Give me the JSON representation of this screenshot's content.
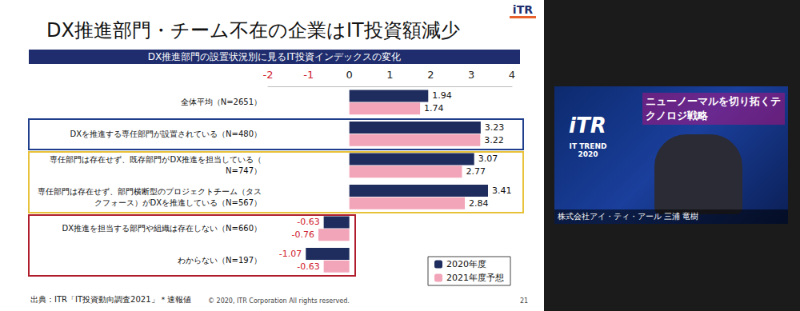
{
  "chart_data": {
    "type": "bar",
    "orientation": "horizontal",
    "title": "DX推進部門・チーム不在の企業はIT投資額減少",
    "subtitle": "DX推進部門の設置状況別に見るIT投資インデックスの変化",
    "categories": [
      "全体平均（N=2651）",
      "DXを推進する専任部門が設置されている（N=480）",
      "専任部門は存在せず、既存部門がDX推進を担当している（N=747）",
      "専任部門は存在せず、部門横断型のプロジェクトチーム（タスクフォース）がDXを推進している（N=567）",
      "DX推進を担当する部門や組織は存在しない（N=660）",
      "わからない（N=197）"
    ],
    "series": [
      {
        "name": "2020年度",
        "color": "#1f2d5e",
        "values": [
          1.94,
          3.23,
          3.07,
          3.41,
          -0.63,
          -1.07
        ]
      },
      {
        "name": "2021年度予想",
        "color": "#f2a5b8",
        "values": [
          1.74,
          3.22,
          2.77,
          2.84,
          -0.76,
          -0.63
        ]
      }
    ],
    "xlim": [
      -2,
      4
    ],
    "xticks": [
      -2,
      -1,
      0,
      1,
      2,
      3,
      4
    ],
    "grid": false,
    "data_labels": true,
    "legend": "lower right",
    "annotations": {
      "source": "出典：ITR「IT投資動向調査2021」＊速報値",
      "copyright": "© 2020, ITR Corporation  All rights reserved.",
      "page_number": "21",
      "logo": "iTR"
    }
  },
  "speaker_panel": {
    "logo": "iTR",
    "event": "IT TREND 2020",
    "headline": "ニューノーマルを切り拓くテクノロジ戦略",
    "caption": "株式会社アイ・ティ・アール 三浦 竜樹"
  }
}
